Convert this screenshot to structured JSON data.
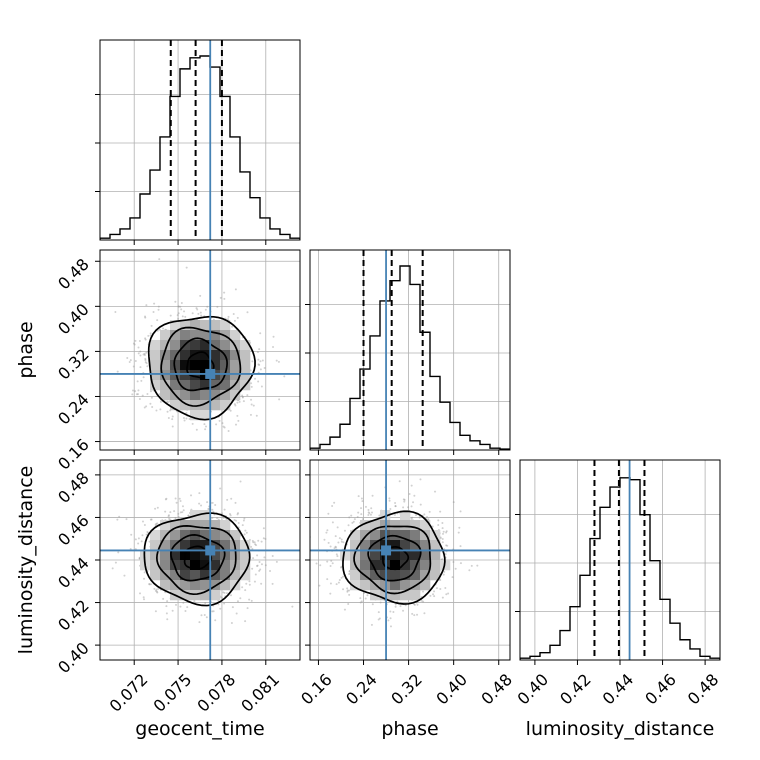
{
  "chart_data": {
    "type": "corner",
    "parameters": [
      {
        "name": "geocent_time",
        "label": "geocent_time",
        "range": [
          0.06966,
          0.08334
        ],
        "ticks": [
          "0.072",
          "0.075",
          "0.078",
          "0.081"
        ],
        "tick_values": [
          0.072,
          0.075,
          0.078,
          0.081
        ],
        "truth": 0.0772,
        "quantiles": [
          0.0745,
          0.0762,
          0.078
        ]
      },
      {
        "name": "phase",
        "label": "phase",
        "range": [
          0.145,
          0.5
        ],
        "ticks": [
          "0.16",
          "0.24",
          "0.32",
          "0.40",
          "0.48"
        ],
        "tick_values": [
          0.16,
          0.24,
          0.32,
          0.4,
          0.48
        ],
        "truth": 0.28,
        "quantiles": [
          0.24,
          0.29,
          0.345
        ]
      },
      {
        "name": "luminosity_distance",
        "label": "luminosity_distance",
        "range": [
          0.393,
          0.487
        ],
        "ticks": [
          "0.40",
          "0.42",
          "0.44",
          "0.46",
          "0.48"
        ],
        "tick_values": [
          0.4,
          0.42,
          0.44,
          0.46,
          0.48
        ],
        "truth": 0.4445,
        "quantiles": [
          0.428,
          0.4395,
          0.4515
        ]
      }
    ],
    "histograms": [
      [
        0.01,
        0.03,
        0.06,
        0.12,
        0.25,
        0.38,
        0.56,
        0.78,
        0.93,
        0.99,
        1.0,
        0.94,
        0.78,
        0.56,
        0.37,
        0.23,
        0.12,
        0.06,
        0.03,
        0.01
      ],
      [
        0.01,
        0.03,
        0.07,
        0.14,
        0.28,
        0.44,
        0.62,
        0.81,
        0.92,
        1.0,
        0.9,
        0.64,
        0.4,
        0.26,
        0.15,
        0.08,
        0.05,
        0.03,
        0.01,
        0.005
      ],
      [
        0.01,
        0.02,
        0.04,
        0.08,
        0.16,
        0.29,
        0.46,
        0.66,
        0.83,
        0.94,
        0.99,
        0.98,
        0.79,
        0.54,
        0.33,
        0.2,
        0.11,
        0.06,
        0.02,
        0.01
      ]
    ],
    "joint": [
      {
        "row": 1,
        "col": 0,
        "center": [
          0.0765,
          0.295
        ],
        "sigma": [
          0.0018,
          0.045
        ],
        "rho": 0.0
      },
      {
        "row": 2,
        "col": 0,
        "center": [
          0.0763,
          0.441
        ],
        "sigma": [
          0.0018,
          0.0105
        ],
        "rho": 0.0
      },
      {
        "row": 2,
        "col": 1,
        "center": [
          0.295,
          0.441
        ],
        "sigma": [
          0.045,
          0.0105
        ],
        "rho": 0.0
      }
    ],
    "truth_color": "#4682b4",
    "contour_levels": [
      "0.5",
      "1.0",
      "1.5",
      "2.0"
    ],
    "grid": true
  }
}
